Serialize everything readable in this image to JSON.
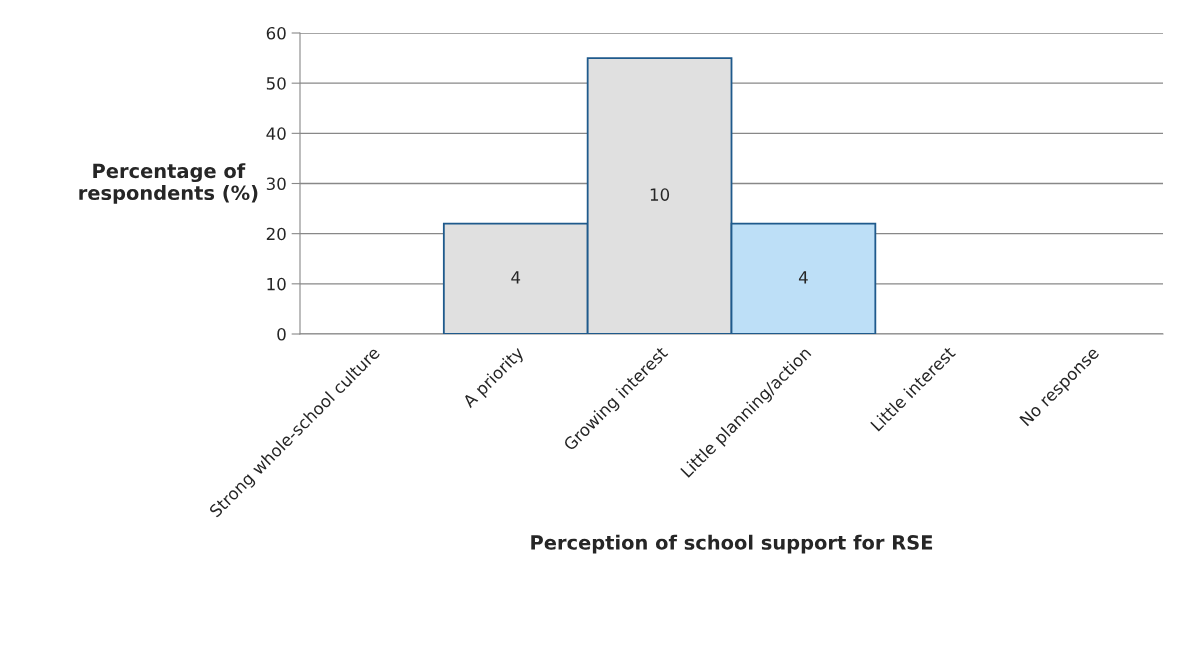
{
  "chart_data": {
    "type": "bar",
    "xlabel": "Perception of school support for RSE",
    "ylabel": "Percentage of\nrespondents (%)",
    "categories": [
      "Strong whole-school culture",
      "A priority",
      "Growing interest",
      "Little planning/action",
      "Little interest",
      "No response"
    ],
    "values": [
      0,
      22,
      55,
      22,
      0,
      0
    ],
    "colors": [
      "#e0e0e0",
      "#e0e0e0",
      "#e0e0e0",
      "#bddff7",
      "#e0e0e0",
      "#e0e0e0"
    ],
    "annotations": [
      "4",
      "10",
      "4"
    ],
    "ylim": [
      0,
      60
    ],
    "yticks": [
      0,
      10,
      20,
      30,
      40,
      50,
      60
    ],
    "grid": "y",
    "legend": false
  }
}
